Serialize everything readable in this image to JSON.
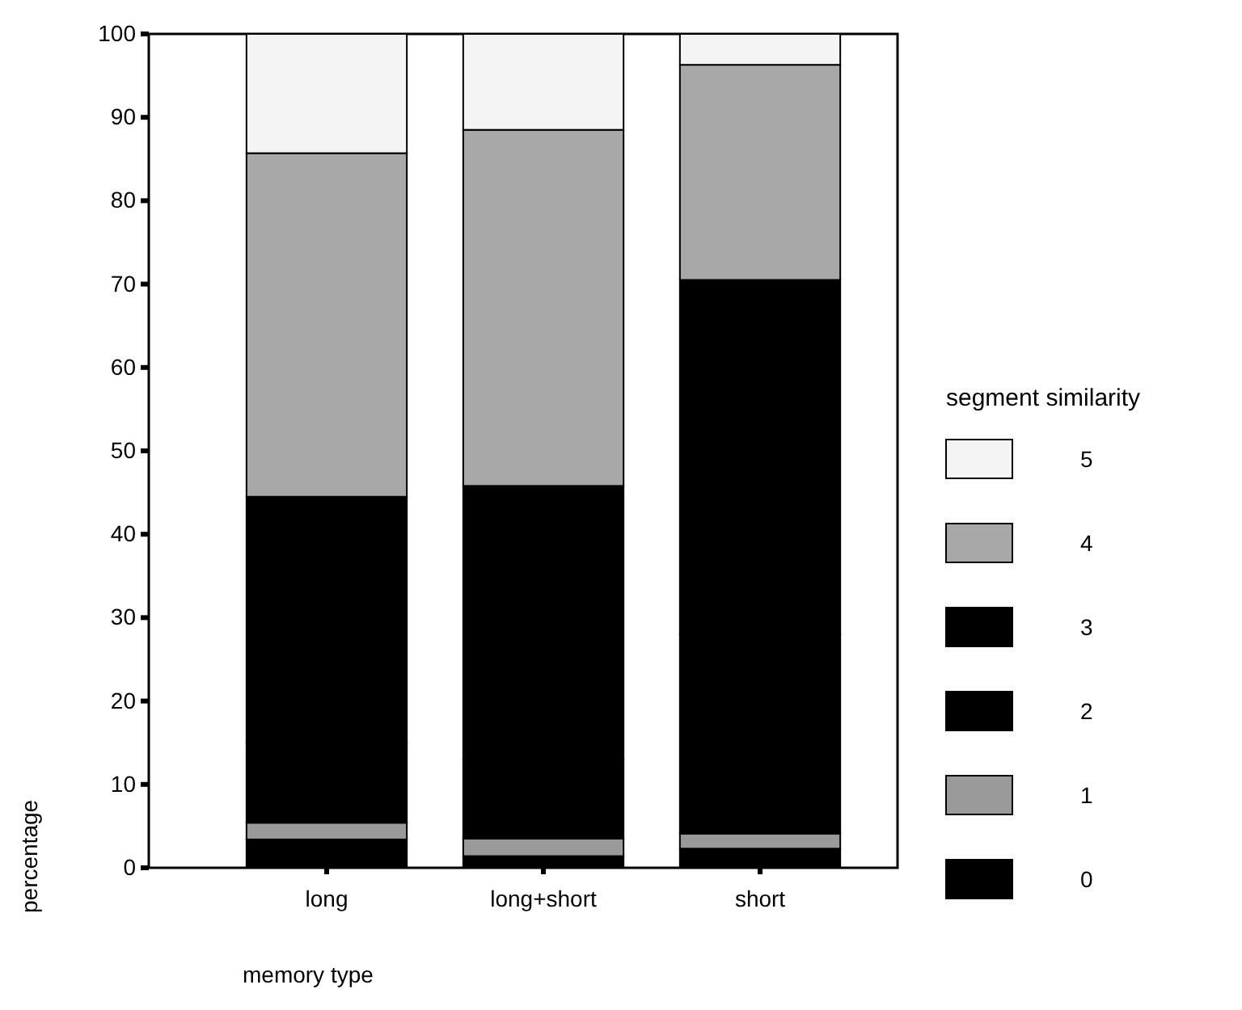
{
  "chart_data": {
    "type": "bar",
    "stacked": true,
    "xlabel": "memory type",
    "ylabel": "percentage",
    "legend_title": "segment similarity",
    "legend": "right",
    "categories": [
      "long",
      "long+short",
      "short"
    ],
    "ylim": [
      0,
      100
    ],
    "yticks": [
      0,
      10,
      20,
      30,
      40,
      50,
      60,
      70,
      80,
      90,
      100
    ],
    "series": [
      {
        "name": "0",
        "color": "#000000",
        "values": [
          3.4,
          1.4,
          2.3
        ]
      },
      {
        "name": "1",
        "color": "#9a9a9a",
        "values": [
          2.0,
          2.1,
          1.8
        ]
      },
      {
        "name": "2",
        "color": "#000000",
        "values": [
          9.6,
          9.5,
          23.9
        ]
      },
      {
        "name": "3",
        "color": "#000000",
        "values": [
          29.5,
          32.8,
          42.5
        ]
      },
      {
        "name": "4",
        "color": "#a8a8a8",
        "values": [
          41.2,
          42.7,
          25.8
        ]
      },
      {
        "name": "5",
        "color": "#f4f4f4",
        "values": [
          14.3,
          11.5,
          3.7
        ]
      }
    ]
  }
}
